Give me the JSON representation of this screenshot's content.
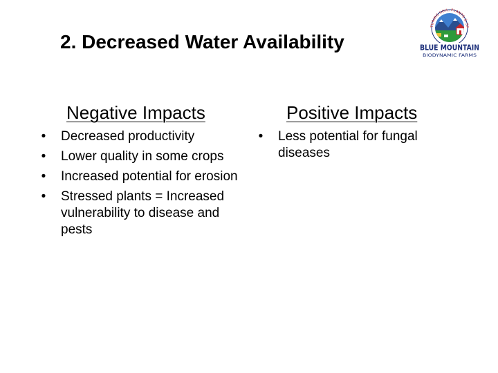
{
  "slide": {
    "title": "2. Decreased Water Availability"
  },
  "logo": {
    "arc_text": "NURTURING SOIL, PLANTS & SPIRIT",
    "line1": "BLUE MOUNTAIN",
    "line2": "BIODYNAMIC FARMS",
    "colors": {
      "sky": "#3f7fd0",
      "mountain": "#2b4f8f",
      "grass": "#2f9a3a",
      "red": "#c8262b",
      "navy": "#1c2f7a"
    }
  },
  "negative": {
    "heading": "Negative Impacts",
    "items": [
      "Decreased productivity",
      "Lower quality in some crops",
      "Increased potential for erosion",
      "Stressed plants = Increased vulnerability to disease and pests"
    ]
  },
  "positive": {
    "heading": "Positive Impacts",
    "items": [
      "Less potential for fungal diseases"
    ]
  },
  "bullet_char": "•"
}
